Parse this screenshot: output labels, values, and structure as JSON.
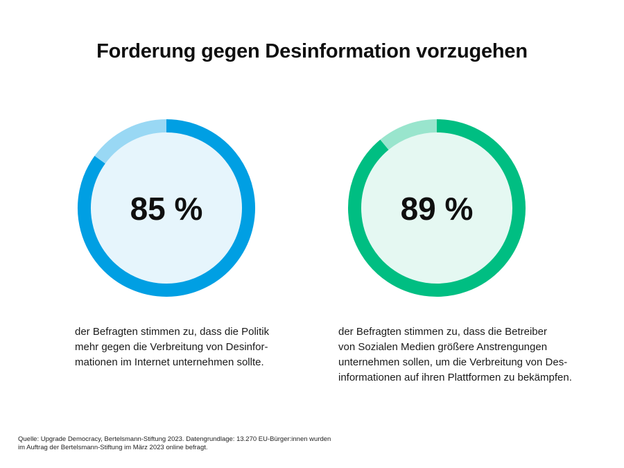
{
  "title": "Forderung gegen Desinformation vorzugehen",
  "chart_data": {
    "type": "pie",
    "subtype": "donut-progress",
    "title": "Forderung gegen Desinformation vorzugehen",
    "charts": [
      {
        "label": "85 %",
        "value": 85,
        "max": 100,
        "color": "#009FE3",
        "remainder_color": "#99D8F4",
        "fill_color": "#E6F5FC",
        "description_lines": [
          "der Befragten stimmen zu, dass die Politik",
          "mehr gegen die Verbreitung von Desinfor-",
          "mationen im Internet unternehmen sollte."
        ]
      },
      {
        "label": "89 %",
        "value": 89,
        "max": 100,
        "color": "#00BE82",
        "remainder_color": "#99E5CD",
        "fill_color": "#E5F8F2",
        "description_lines": [
          "der Befragten stimmen zu, dass die Betreiber",
          "von Sozialen Medien größere Anstrengungen",
          "unternehmen sollen, um die Verbreitung von Des-",
          "informationen auf ihren Plattformen zu bekämpfen."
        ]
      }
    ]
  },
  "source": {
    "lines": [
      "Quelle: Upgrade Democracy, Bertelsmann-Stiftung 2023. Datengrundlage: 13.270 EU-Bürger:innen wurden",
      "im Auftrag der Bertelsmann-Stiftung im März 2023 online befragt."
    ]
  }
}
